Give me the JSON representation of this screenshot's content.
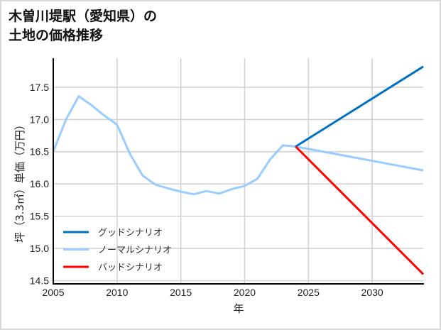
{
  "title_line1": "木曽川堤駅（愛知県）の",
  "title_line2": "土地の価格推移",
  "chart_data": {
    "type": "line",
    "title": "木曽川堤駅（愛知県）の土地の価格推移",
    "xlabel": "年",
    "ylabel": "坪（3.3㎡）単価（万円）",
    "xlim": [
      2005,
      2034
    ],
    "ylim": [
      14.45,
      17.95
    ],
    "xticks": [
      2005,
      2010,
      2015,
      2020,
      2025,
      2030
    ],
    "yticks": [
      14.5,
      15.0,
      15.5,
      16.0,
      16.5,
      17.0,
      17.5
    ],
    "ytick_labels": [
      "14.5",
      "15.0",
      "15.5",
      "16.0",
      "16.5",
      "17.0",
      "17.5"
    ],
    "grid": true,
    "legend_position": "lower left",
    "series": [
      {
        "name": "ノーマルシナリオ",
        "color": "#99ccff",
        "x": [
          2005,
          2006,
          2007,
          2008,
          2009,
          2010,
          2011,
          2012,
          2013,
          2014,
          2015,
          2016,
          2017,
          2018,
          2019,
          2020,
          2021,
          2022,
          2023,
          2024,
          2034
        ],
        "values": [
          16.5,
          17.0,
          17.36,
          17.22,
          17.06,
          16.92,
          16.47,
          16.13,
          15.99,
          15.93,
          15.88,
          15.84,
          15.89,
          15.85,
          15.92,
          15.97,
          16.08,
          16.38,
          16.6,
          16.58,
          16.21
        ]
      },
      {
        "name": "グッドシナリオ",
        "color": "#0070c0",
        "x": [
          2024,
          2034
        ],
        "values": [
          16.58,
          17.82
        ]
      },
      {
        "name": "バッドシナリオ",
        "color": "#ff0000",
        "x": [
          2024,
          2034
        ],
        "values": [
          16.58,
          14.6
        ]
      }
    ],
    "legend": [
      "グッドシナリオ",
      "ノーマルシナリオ",
      "バッドシナリオ"
    ]
  }
}
